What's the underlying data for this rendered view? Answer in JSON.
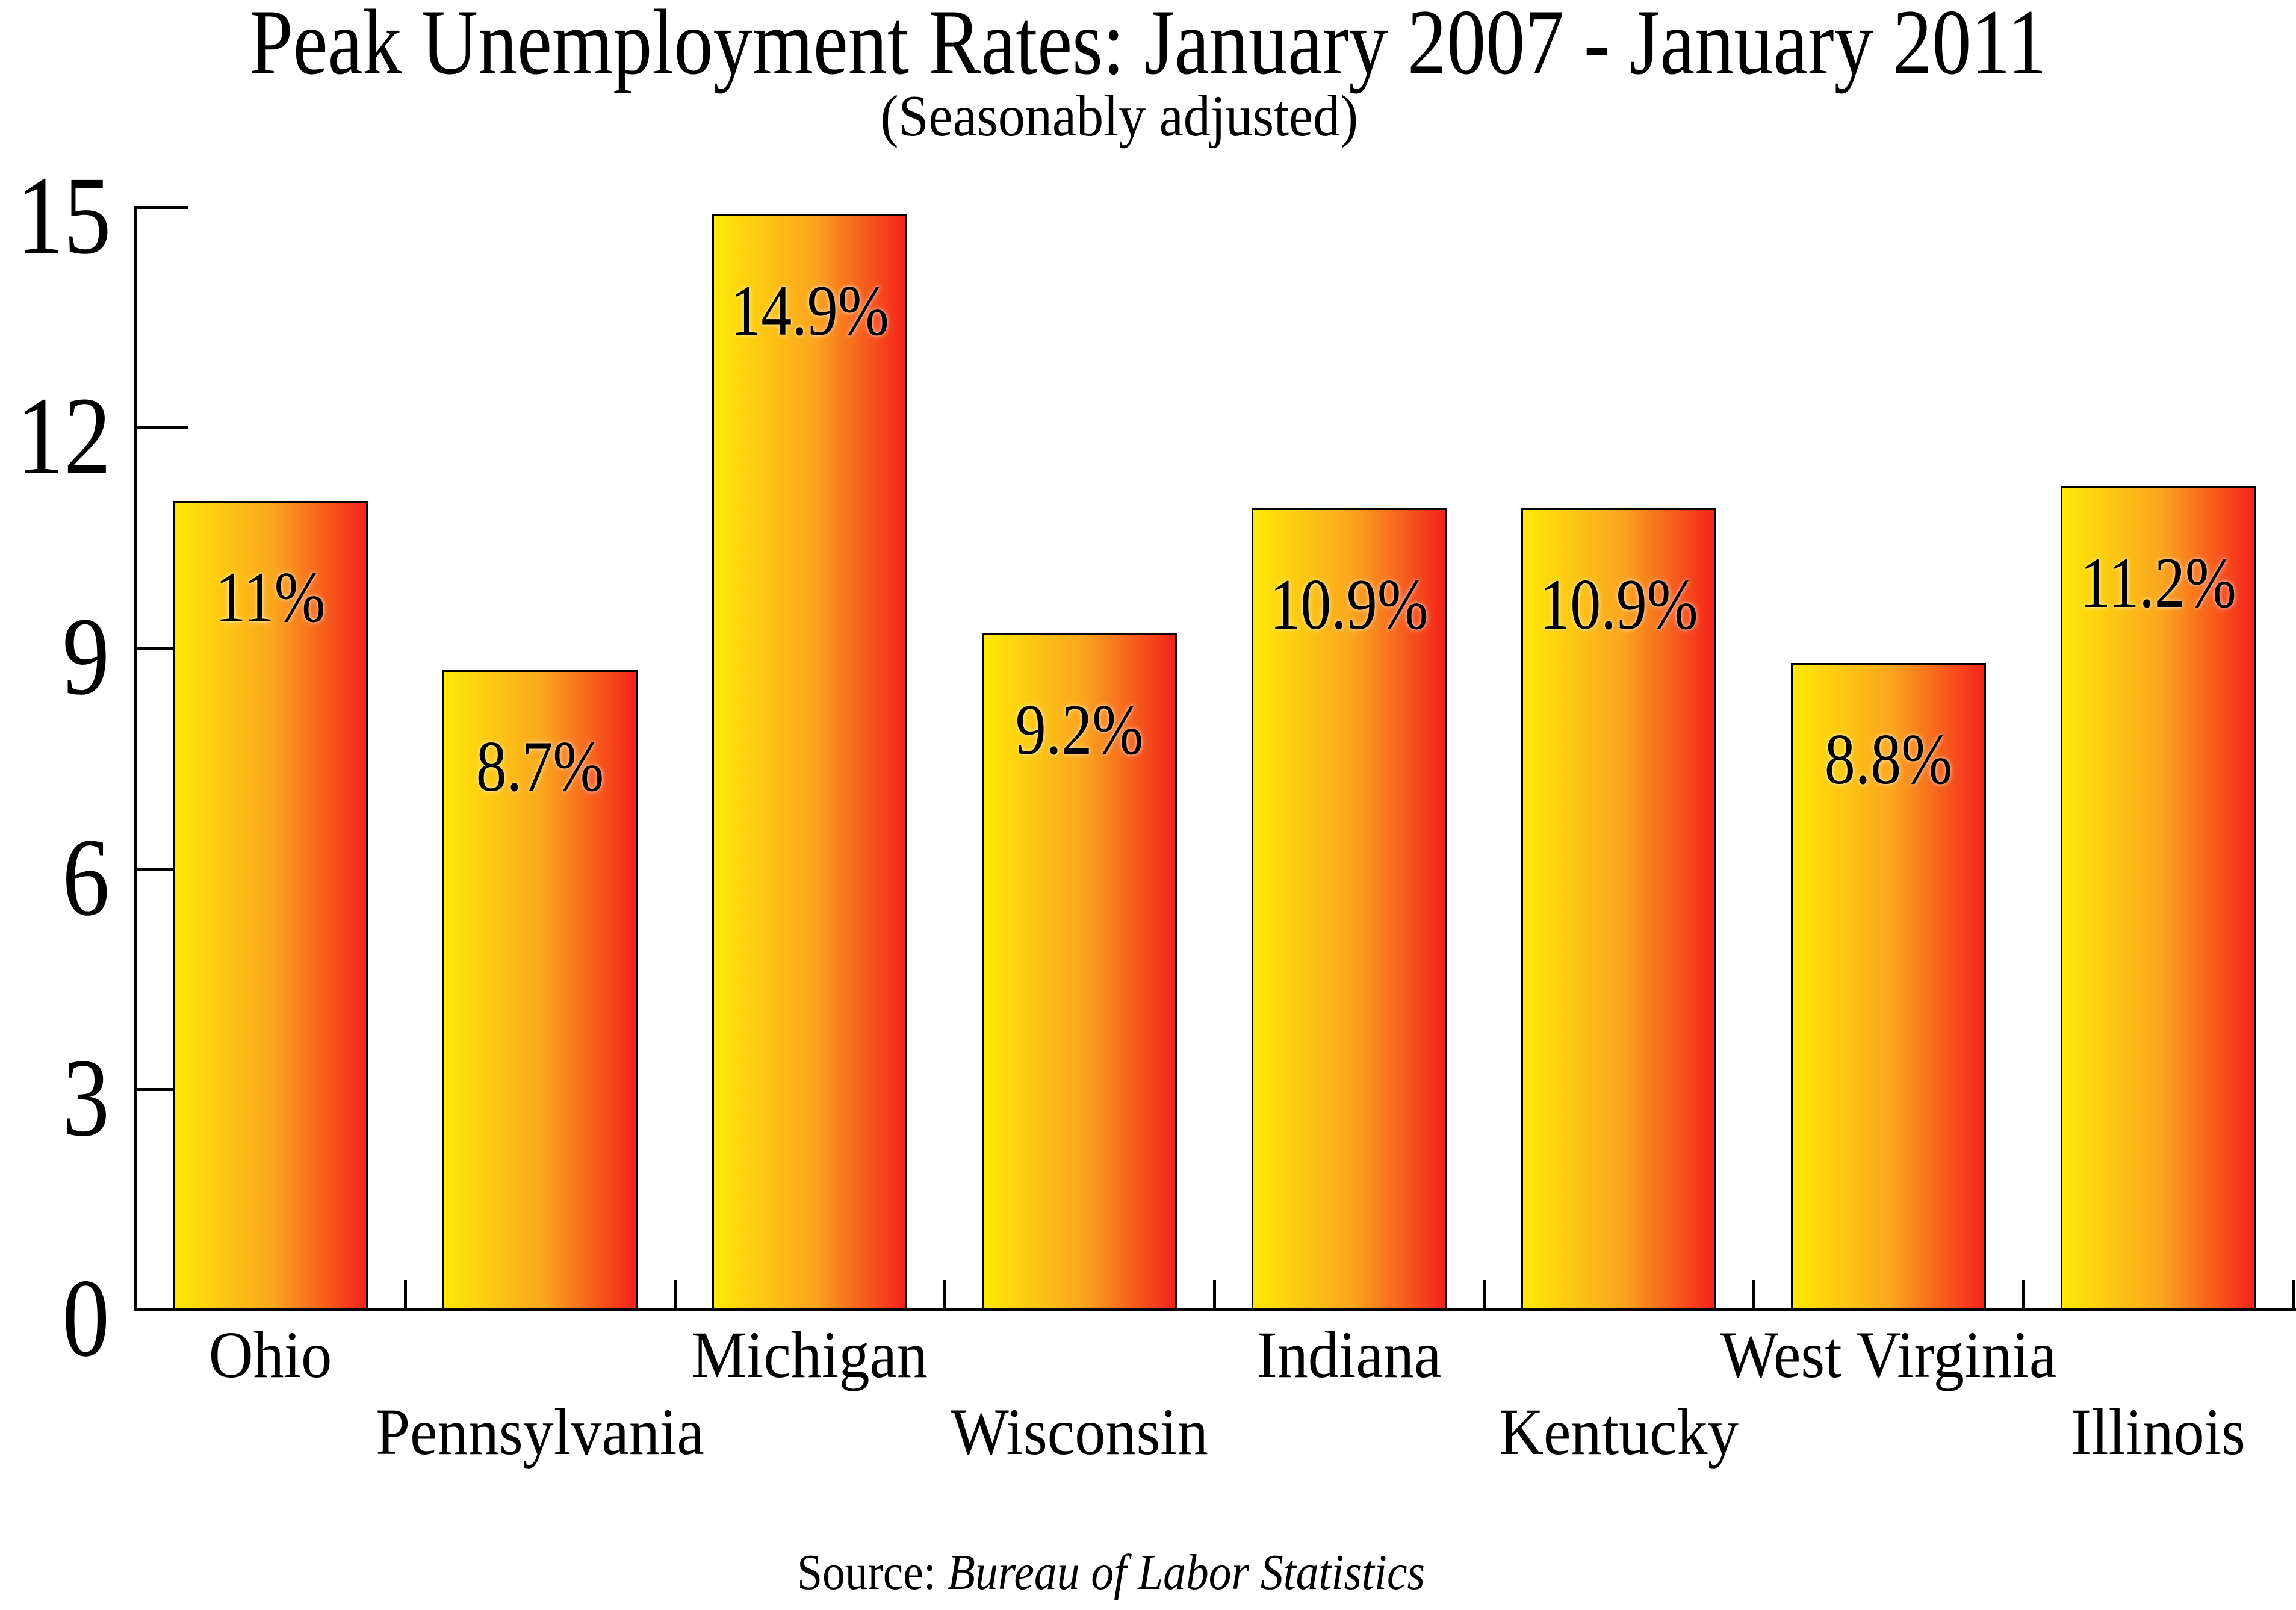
{
  "title": "Peak Unemployment Rates: January 2007 - January 2011",
  "subtitle": "(Seasonably adjusted)",
  "source": {
    "prefix": "Source: ",
    "name": "Bureau of Labor Statistics"
  },
  "chart_data": {
    "type": "bar",
    "title": "Peak Unemployment Rates: January 2007 - January 2011",
    "subtitle": "(Seasonably adjusted)",
    "categories": [
      "Ohio",
      "Pennsylvania",
      "Michigan",
      "Wisconsin",
      "Indiana",
      "Kentucky",
      "West Virginia",
      "Illinois"
    ],
    "values": [
      11,
      8.7,
      14.9,
      9.2,
      10.9,
      10.9,
      8.8,
      11.2
    ],
    "bar_labels": [
      "11%",
      "8.7%",
      "14.9%",
      "9.2%",
      "10.9%",
      "10.9%",
      "8.8%",
      "11.2%"
    ],
    "xlabel": "",
    "ylabel": "",
    "ylim": [
      0,
      15
    ],
    "yticks": [
      0,
      3,
      6,
      9,
      12,
      15
    ],
    "ytick_labels": [
      "0",
      "3",
      "6",
      "9",
      "12",
      "15"
    ],
    "grid": false,
    "legend": null,
    "annotation": "Source: Bureau of Labor Statistics",
    "colors": {
      "bar_gradient_left": "#ffe808",
      "bar_gradient_mid": "#faa51e",
      "bar_gradient_right": "#f4231b",
      "bar_border": "#000000",
      "axis": "#000000",
      "text": "#000000",
      "background": "#ffffff"
    }
  }
}
